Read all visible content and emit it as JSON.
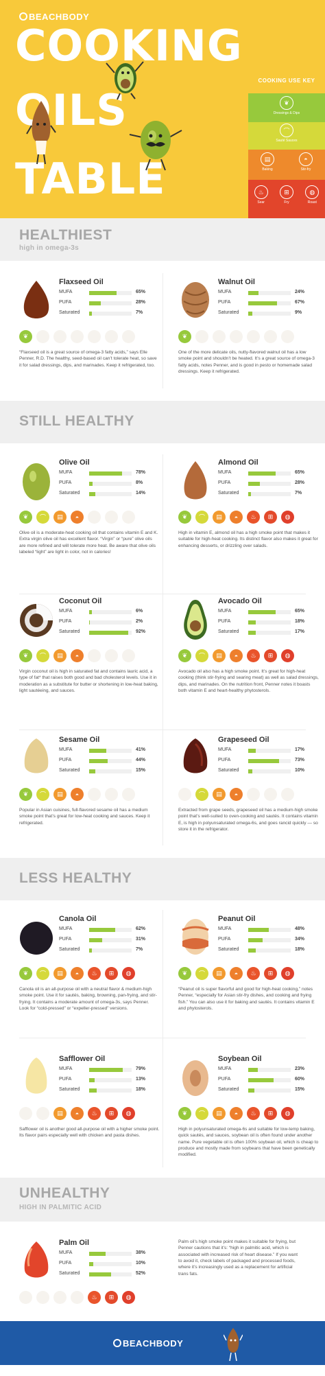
{
  "brand": "BEACHBODY",
  "hero": {
    "title_lines": [
      "COOKING",
      "OILS",
      "TABLE"
    ]
  },
  "key": {
    "title": "COOKING USE KEY",
    "items": [
      {
        "label": "Dressings & Dips",
        "color": "#97c93c",
        "icon": "leaf-icon"
      },
      {
        "label": "Sauté Sauces",
        "color": "#d5d93a",
        "icon": "saute-pan-icon"
      },
      {
        "label": "Baking",
        "color": "#f29a2e",
        "icon": "oven-icon"
      },
      {
        "label": "Stir-fry",
        "color": "#ee7f2c",
        "icon": "wok-icon"
      },
      {
        "label": "Sear",
        "color": "#e9542b",
        "icon": "flame-icon"
      },
      {
        "label": "Fry",
        "color": "#e34a2b",
        "icon": "fryer-icon"
      },
      {
        "label": "Roast",
        "color": "#e03f2b",
        "icon": "roast-icon"
      }
    ]
  },
  "sections": [
    {
      "title": "HEALTHIEST",
      "subtitle": "high in omega-3s"
    },
    {
      "title": "STILL HEALTHY",
      "subtitle": ""
    },
    {
      "title": "LESS HEALTHY",
      "subtitle": ""
    },
    {
      "title": "UNHEALTHY",
      "subtitle": "HIGH IN PALMITIC ACID"
    }
  ],
  "stat_labels": [
    "MUFA",
    "PUFA",
    "Saturated"
  ],
  "oils": [
    {
      "name": "Flaxseed Oil",
      "stats": [
        65,
        28,
        7
      ],
      "uses": [
        1,
        0,
        0,
        0,
        0,
        0,
        0
      ],
      "desc": "“Flaxseed oil is a great source of omega-3 fatty acids,” says Elle Penner, R.D. The healthy, seed-based oil can’t tolerate heat, so save it for salad dressings, dips, and marinades. Keep it refrigerated, too."
    },
    {
      "name": "Walnut Oil",
      "stats": [
        24,
        67,
        9
      ],
      "uses": [
        1,
        0,
        0,
        0,
        0,
        0,
        0
      ],
      "desc": "One of the more delicate oils, nutty-flavored walnut oil has a low smoke point and shouldn’t be heated. It’s a great source of omega-3 fatty acids, notes Penner, and is good in pesto or homemade salad dressings. Keep it refrigerated."
    },
    {
      "name": "Olive Oil",
      "stats": [
        78,
        8,
        14
      ],
      "uses": [
        1,
        1,
        1,
        1,
        0,
        0,
        0
      ],
      "desc": "Olive oil is a moderate-heat cooking oil that contains vitamin E and K. Extra virgin olive oil has excellent flavor. “Virgin” or “pure” olive oils are more refined and will tolerate more heat. Be aware that olive oils labeled “light” are light in color, not in calories!"
    },
    {
      "name": "Almond Oil",
      "stats": [
        65,
        28,
        7
      ],
      "uses": [
        1,
        1,
        1,
        1,
        1,
        1,
        1
      ],
      "desc": "High in vitamin E, almond oil has a high smoke point that makes it suitable for high-heat cooking. Its distinct flavor also makes it great for enhancing desserts, or drizzling over salads."
    },
    {
      "name": "Coconut Oil",
      "stats": [
        6,
        2,
        92
      ],
      "uses": [
        1,
        1,
        1,
        1,
        0,
        0,
        0
      ],
      "desc": "Virgin coconut oil is high in saturated fat and contains lauric acid, a type of fat* that raises both good and bad cholesterol levels. Use it in moderation as a substitute for butter or shortening in low-heat baking, light sautéeing, and sauces."
    },
    {
      "name": "Avocado Oil",
      "stats": [
        65,
        18,
        17
      ],
      "uses": [
        1,
        1,
        1,
        1,
        1,
        1,
        1
      ],
      "desc": "Avocado oil also has a high smoke point. It’s great for high-heat cooking (think stir-frying and searing meat) as well as salad dressings, dips, and marinades. On the nutrition front, Penner notes it boasts both vitamin E and heart-healthy phytosterols."
    },
    {
      "name": "Sesame Oil",
      "stats": [
        41,
        44,
        15
      ],
      "uses": [
        1,
        1,
        1,
        1,
        0,
        0,
        0
      ],
      "desc": "Popular in Asian cuisines, full-flavored sesame oil has a medium smoke point that’s great for low-heat cooking and sauces. Keep it refrigerated."
    },
    {
      "name": "Grapeseed Oil",
      "stats": [
        17,
        73,
        10
      ],
      "uses": [
        0,
        1,
        1,
        1,
        0,
        0,
        0
      ],
      "desc": "Extracted from grape seeds, grapeseed oil has a medium-high smoke point that’s well-suited to oven-cooking and sautés. It contains vitamin E, is high in polyunsaturated omega-6s, and goes rancid quickly — so store it in the refrigerator."
    },
    {
      "name": "Canola Oil",
      "stats": [
        62,
        31,
        7
      ],
      "uses": [
        1,
        1,
        1,
        1,
        1,
        1,
        1
      ],
      "desc": "Canola oil is an all-purpose oil with a neutral flavor & medium-high smoke point. Use it for sautés, baking, browning, pan-frying, and stir-frying. It contains a moderate amount of omega-3s, says Penner. Look for “cold-pressed” or “expeller-pressed” versions."
    },
    {
      "name": "Peanut Oil",
      "stats": [
        48,
        34,
        18
      ],
      "uses": [
        1,
        1,
        1,
        1,
        1,
        1,
        1
      ],
      "desc": "“Peanut oil is super flavorful and good for high-heat cooking,” notes Penner, “especially for Asian stir-fry dishes, and cooking and frying fish.” You can also use it for baking and sautés. It contains vitamin E and phytosterols."
    },
    {
      "name": "Safflower Oil",
      "stats": [
        79,
        13,
        18
      ],
      "uses": [
        0,
        0,
        1,
        1,
        1,
        1,
        1
      ],
      "desc": "Safflower oil is another good all-purpose oil with a higher smoke point. Its flavor pairs especially well with chicken and pasta dishes."
    },
    {
      "name": "Soybean Oil",
      "stats": [
        23,
        60,
        15
      ],
      "uses": [
        1,
        1,
        1,
        1,
        1,
        1,
        1
      ],
      "desc": "High in polyunsaturated omega-6s and suitable for low-temp baking, quick sautés, and sauces, soybean oil is often found under another name. Pure vegetable oil is often 100% soybean oil, which is cheap to produce and mostly made from soybeans that have been genetically modified."
    },
    {
      "name": "Palm Oil",
      "stats": [
        38,
        10,
        52
      ],
      "uses": [
        0,
        0,
        0,
        0,
        1,
        1,
        1
      ],
      "desc": "Palm oil’s high smoke point makes it suitable for frying, but Penner cautions that it’s: “high in palmitic acid, which is associated with increased risk of heart disease.” If you want to avoid it, check labels of packaged and processed foods, where it’s increasingly used as a replacement for artificial trans fats."
    }
  ],
  "icon_glyphs": [
    "❦",
    "⌒",
    "▤",
    "◓",
    "♨",
    "⊞",
    "◍"
  ],
  "footer": {
    "brand": "BEACHBODY"
  }
}
